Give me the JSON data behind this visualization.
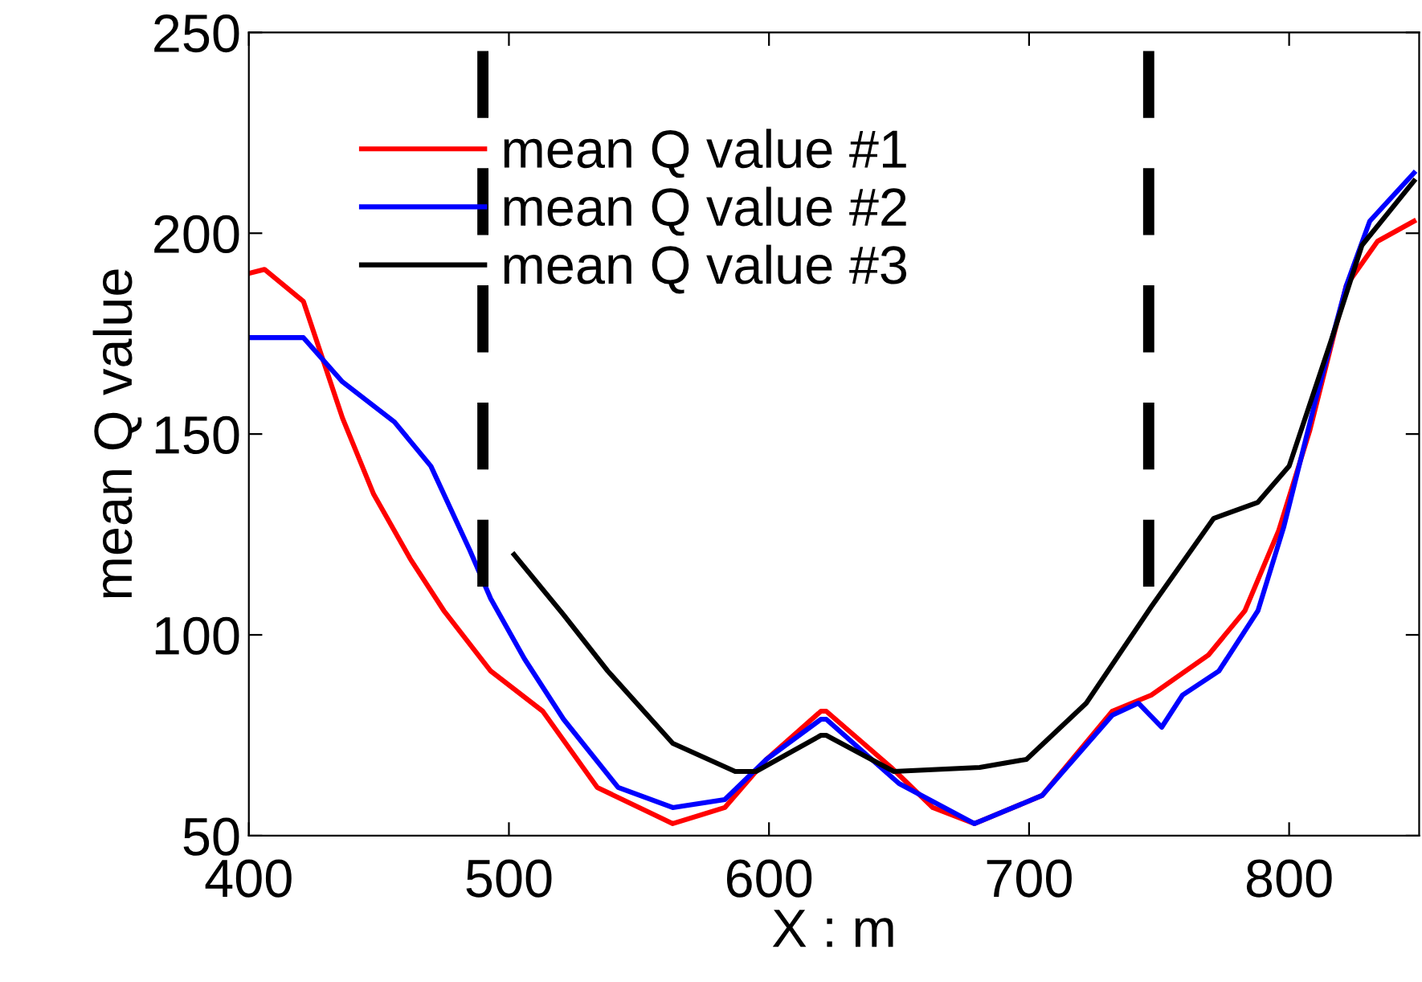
{
  "chart_data": {
    "type": "line",
    "xlabel": "X : m",
    "ylabel": "mean Q value",
    "xlim": [
      400,
      850
    ],
    "xticks": [
      400,
      500,
      600,
      700,
      800
    ],
    "ylim": [
      50,
      250
    ],
    "yticks": [
      50,
      100,
      150,
      200,
      250
    ],
    "grid": false,
    "legend": "top",
    "marker": "none",
    "line_style": "solid",
    "ref_lines": [
      {
        "axis": "x",
        "value": 490,
        "color": "#000000",
        "line_style": "dashed"
      },
      {
        "axis": "x",
        "value": 746,
        "color": "#000000",
        "line_style": "dashed"
      }
    ],
    "series": [
      {
        "name": "mean Q value #1",
        "color": "#ff0000",
        "x": [
          400,
          406,
          421,
          436,
          448,
          462,
          475,
          493,
          513,
          534,
          563,
          583,
          599,
          620,
          622,
          647,
          663,
          679,
          705,
          732,
          747,
          769,
          783,
          796,
          808,
          822,
          834,
          848
        ],
        "values": [
          190,
          191,
          183,
          154,
          135,
          119,
          106,
          91,
          81,
          62,
          53,
          57,
          69,
          81,
          81,
          67,
          57,
          53,
          60,
          81,
          85,
          95,
          106,
          126,
          151,
          187,
          198,
          203
        ]
      },
      {
        "name": "mean Q value #2",
        "color": "#0000ff",
        "x": [
          400,
          421,
          436,
          456,
          470,
          485,
          493,
          506,
          521,
          542,
          563,
          583,
          599,
          620,
          622,
          650,
          679,
          705,
          732,
          742,
          751,
          759,
          773,
          788,
          798,
          810,
          822,
          831,
          848
        ],
        "values": [
          174,
          174,
          163,
          153,
          142,
          121,
          109,
          94,
          79,
          62,
          57,
          59,
          69,
          79,
          79,
          63,
          53,
          60,
          80,
          83,
          77,
          85,
          91,
          106,
          127,
          158,
          187,
          203,
          215
        ]
      },
      {
        "name": "mean Q value #3",
        "color": "#000000",
        "x": [
          502,
          521,
          538,
          563,
          587,
          595,
          620,
          622,
          648,
          681,
          699,
          722,
          747,
          771,
          788,
          800,
          816,
          828,
          848
        ],
        "values": [
          120,
          105,
          91,
          73,
          66,
          66,
          75,
          75,
          66,
          67,
          69,
          83,
          107,
          129,
          133,
          142,
          173,
          197,
          213
        ]
      }
    ]
  }
}
